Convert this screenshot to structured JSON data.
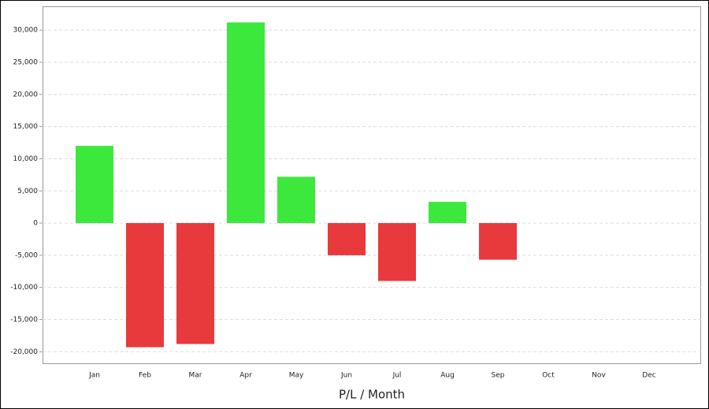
{
  "chart_data": {
    "type": "bar",
    "x_label": "P/L / Month",
    "categories": [
      "Jan",
      "Feb",
      "Mar",
      "Apr",
      "May",
      "Jun",
      "Jul",
      "Aug",
      "Sep",
      "Oct",
      "Nov",
      "Dec"
    ],
    "values": [
      12000,
      -19300,
      -18800,
      31200,
      7200,
      -5000,
      -9000,
      3300,
      -5700,
      null,
      null,
      null
    ],
    "positive_color": "#3de83d",
    "negative_color": "#e8393d",
    "ylim": [
      -21800,
      33700
    ],
    "yticks": [
      {
        "value": -20000,
        "label": "-20,000"
      },
      {
        "value": -15000,
        "label": "-15,000"
      },
      {
        "value": -10000,
        "label": "-10,000"
      },
      {
        "value": -5000,
        "label": "-5,000"
      },
      0,
      {
        "value": 5000,
        "label": "5,000"
      },
      {
        "value": 10000,
        "label": "10,000"
      },
      {
        "value": 15000,
        "label": "15,000"
      },
      {
        "value": 20000,
        "label": "20,000"
      },
      {
        "value": 25000,
        "label": "25,000"
      },
      {
        "value": 30000,
        "label": "30,000"
      }
    ],
    "grid": true
  }
}
